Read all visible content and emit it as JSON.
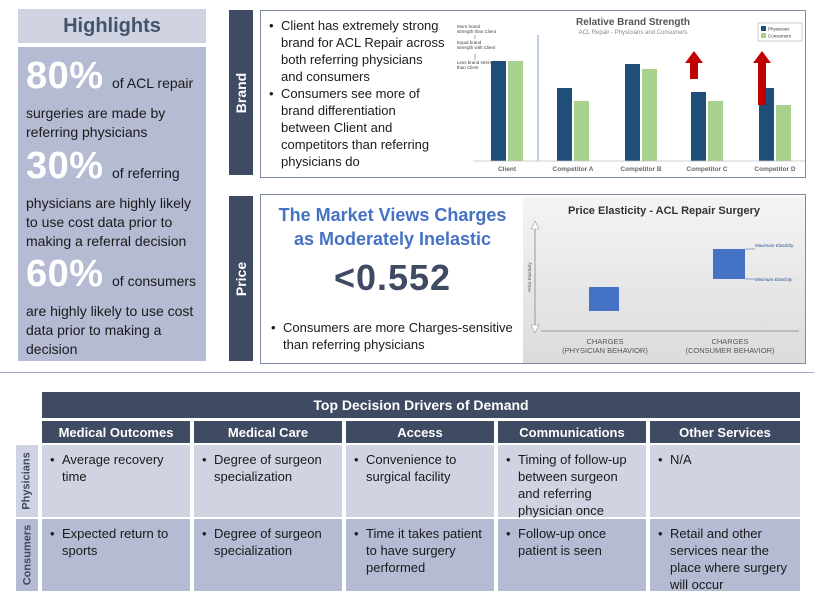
{
  "highlights": {
    "title": "Highlights",
    "stats": [
      {
        "value": "80%",
        "inline": "of ACL repair",
        "text": "surgeries are made by referring physicians"
      },
      {
        "value": "30%",
        "inline": "of  referring",
        "text": "physicians are highly likely to use cost data prior to making a referral decision"
      },
      {
        "value": "60%",
        "inline": "of consumers",
        "text": "are highly likely to use cost data prior to making a decision"
      }
    ]
  },
  "brand": {
    "tab_label": "Brand",
    "bullets": [
      "Client has extremely strong brand for ACL Repair across both referring physicians and consumers",
      "Consumers see more of brand differentiation between Client and competitors than referring physicians do"
    ]
  },
  "price": {
    "tab_label": "Price",
    "headline_line1": "The Market Views Charges",
    "headline_line2": "as Moderately Inelastic",
    "value": "<0.552",
    "bullet": "Consumers are more Charges-sensitive than referring physicians"
  },
  "colors": {
    "physicians": "#1f4e79",
    "consumers": "#a9d18e",
    "accent_blue": "#4472c4",
    "arrow_red": "#c00000",
    "elastic_box": "#4472c4"
  },
  "chart_data": [
    {
      "type": "bar",
      "title": "Relative Brand Strength",
      "subtitle": "ACL Repair - Physicians and Consumers",
      "categories": [
        "Client",
        "Competitor A",
        "Competitor B",
        "Competitor C",
        "Competitor D"
      ],
      "series": [
        {
          "name": "Physicians",
          "values": [
            1.0,
            0.73,
            0.97,
            0.69,
            0.73
          ]
        },
        {
          "name": "Consumers",
          "values": [
            1.0,
            0.6,
            0.92,
            0.6,
            0.56
          ]
        }
      ],
      "ylim": [
        0,
        1.3
      ],
      "y_annotations": [
        "More brand strength than Client",
        "Equal brand strength with Client",
        "Less brand strength than Client"
      ],
      "legend_position": "top-right"
    },
    {
      "type": "scatter",
      "title": "Price Elasticity - ACL Repair Surgery",
      "ylabel": "Price Elasticity",
      "categories": [
        "CHARGES\n(PHYSICIAN BEHAVIOR)",
        "CHARGES\n(CONSUMER BEHAVIOR)"
      ],
      "markers": [
        "Maximum Elasticity",
        "Minimum Elasticity"
      ]
    }
  ],
  "table": {
    "title": "Top Decision Drivers of Demand",
    "columns": [
      "Medical Outcomes",
      "Medical Care",
      "Access",
      "Communications",
      "Other Services"
    ],
    "rows": [
      {
        "label": "Physicians",
        "cells": [
          "Average recovery time",
          "Degree of surgeon specialization",
          "Convenience to surgical facility",
          "Timing of follow-up between surgeon and referring physician once patient is seen",
          "N/A"
        ]
      },
      {
        "label": "Consumers",
        "cells": [
          "Expected return to sports",
          "Degree of surgeon specialization",
          "Time it takes patient to have surgery performed",
          "Follow-up once patient is seen",
          "Retail and other services near the place where surgery will occur"
        ]
      }
    ]
  }
}
